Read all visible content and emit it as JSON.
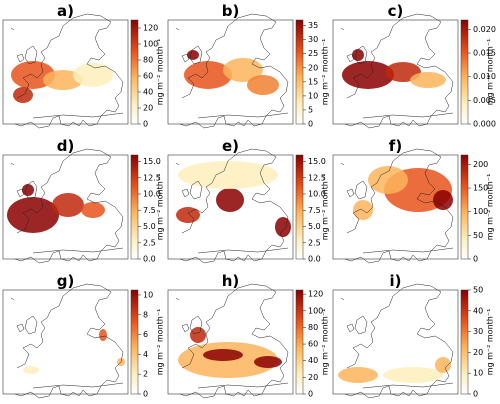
{
  "panels": [
    {
      "label": "a)",
      "colorbar": {
        "label": "mg m⁻² month⁻¹",
        "range": [
          0,
          130
        ],
        "ticks": [
          0,
          20,
          40,
          60,
          80,
          100,
          120
        ]
      }
    },
    {
      "label": "b)",
      "colorbar": {
        "label": "mg m⁻² month⁻¹",
        "range": [
          0,
          37
        ],
        "ticks": [
          0,
          5,
          10,
          15,
          20,
          25,
          30,
          35
        ]
      }
    },
    {
      "label": "c)",
      "colorbar": {
        "label": "mg m⁻² month⁻¹",
        "range": [
          0,
          0.022
        ],
        "ticks": [
          {
            "value": 0,
            "label": "0.000"
          },
          {
            "value": 0.005,
            "label": "0.005"
          },
          {
            "value": 0.01,
            "label": "0.010"
          },
          {
            "value": 0.015,
            "label": "0.015"
          },
          {
            "value": 0.02,
            "label": "0.020"
          }
        ]
      }
    },
    {
      "label": "d)",
      "colorbar": {
        "label": "mg m⁻² month⁻¹",
        "range": [
          0,
          16
        ],
        "ticks": [
          {
            "value": 0,
            "label": "0.0"
          },
          2.5,
          {
            "value": 5,
            "label": "5.0"
          },
          7.5,
          {
            "value": 10,
            "label": "10.0"
          },
          12.5,
          {
            "value": 15,
            "label": "15.0"
          }
        ]
      }
    },
    {
      "label": "e)",
      "colorbar": {
        "label": "mg m⁻² month⁻¹",
        "range": [
          0,
          16
        ],
        "ticks": [
          {
            "value": 0,
            "label": "0.0"
          },
          2.5,
          {
            "value": 5,
            "label": "5.0"
          },
          7.5,
          {
            "value": 10,
            "label": "10.0"
          },
          12.5,
          {
            "value": 15,
            "label": "15.0"
          }
        ]
      }
    },
    {
      "label": "f)",
      "colorbar": {
        "label": "mg m⁻² month⁻¹",
        "range": [
          0,
          220
        ],
        "ticks": [
          0,
          50,
          100,
          150,
          200
        ]
      }
    },
    {
      "label": "g)",
      "colorbar": {
        "label": "mg m⁻² month⁻¹",
        "range": [
          0,
          10.5
        ],
        "ticks": [
          0,
          2,
          4,
          6,
          8,
          10
        ]
      }
    },
    {
      "label": "h)",
      "colorbar": {
        "label": "mg m⁻² month⁻¹",
        "range": [
          0,
          125
        ],
        "ticks": [
          0,
          20,
          40,
          60,
          80,
          100,
          120
        ]
      }
    },
    {
      "label": "i)",
      "colorbar": {
        "label": "mg m⁻² month⁻¹",
        "range": [
          0,
          50
        ],
        "ticks": [
          0,
          10,
          20,
          30,
          40,
          50
        ]
      }
    }
  ]
}
